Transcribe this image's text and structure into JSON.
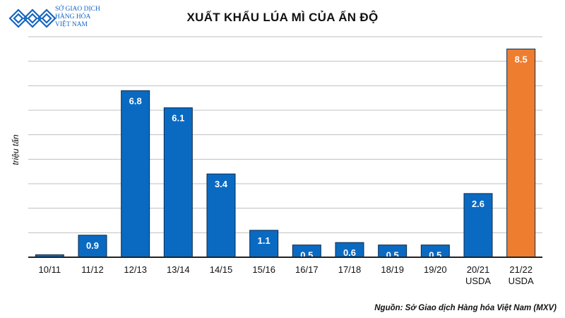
{
  "logo": {
    "name": "sgd-logo-icon",
    "color": "#1565c0",
    "lines": [
      "SỞ GIAO DỊCH",
      "HÀNG HÓA",
      "VIỆT NAM"
    ]
  },
  "chart_data": {
    "type": "bar",
    "title": "XUẤT KHẨU LÚA MÌ CỦA ẤN ĐỘ",
    "xlabel": "",
    "ylabel": "triệu tấn",
    "categories": [
      [
        "10/11"
      ],
      [
        "11/12"
      ],
      [
        "12/13"
      ],
      [
        "13/14"
      ],
      [
        "14/15"
      ],
      [
        "15/16"
      ],
      [
        "16/17"
      ],
      [
        "17/18"
      ],
      [
        "18/19"
      ],
      [
        "19/20"
      ],
      [
        "20/21",
        "USDA"
      ],
      [
        "21/22",
        "USDA"
      ]
    ],
    "values": [
      0.1,
      0.9,
      6.8,
      6.1,
      3.4,
      1.1,
      0.5,
      0.6,
      0.5,
      0.5,
      2.6,
      8.5
    ],
    "data_labels": [
      "",
      "0.9",
      "6.8",
      "6.1",
      "3.4",
      "1.1",
      "0.5",
      "0.6",
      "0.5",
      "0.5",
      "2.6",
      "8.5"
    ],
    "bar_colors": [
      "#0a6ac2",
      "#0a6ac2",
      "#0a6ac2",
      "#0a6ac2",
      "#0a6ac2",
      "#0a6ac2",
      "#0a6ac2",
      "#0a6ac2",
      "#0a6ac2",
      "#0a6ac2",
      "#0a6ac2",
      "#ee7d2f"
    ],
    "bar_border_color": "#0b2a4a",
    "gridline_color": "#bfbfbf",
    "ylim": [
      0,
      9
    ],
    "grid": true,
    "legend": "none"
  },
  "source": "Nguồn: Sở Giao dịch Hàng hóa Việt Nam (MXV)"
}
